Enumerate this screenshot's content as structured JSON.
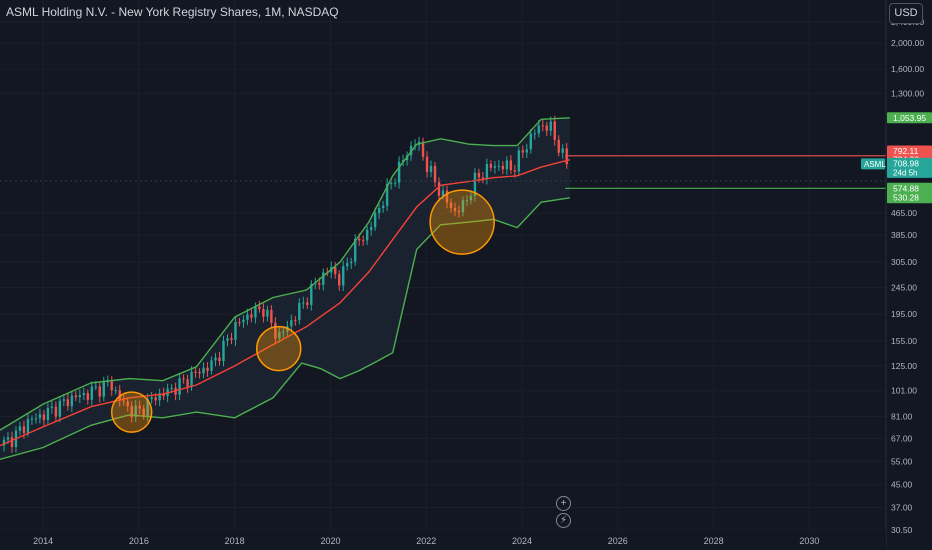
{
  "header": {
    "title": "ASML Holding N.V. - New York Registry Shares, 1M, NASDAQ",
    "currency_button": "USD"
  },
  "controls": {
    "add_icon": "plus-circle-icon",
    "tool_icon": "lightning-icon"
  },
  "colors": {
    "background": "#131722",
    "up": "#26a69a",
    "down": "#ef5350",
    "band": "#4caf50",
    "basis": "#f44336",
    "circle": "#ff9800",
    "grid": "#1e222d"
  },
  "chart_data": {
    "type": "candlestick",
    "title": "ASML Holding N.V. - New York Registry Shares, 1M, NASDAQ",
    "yscale": "log",
    "ylim": [
      30.5,
      2900
    ],
    "xlim": [
      2013.1,
      2031.6
    ],
    "y_ticks": [
      "2,400.00",
      "2,000.00",
      "1,600.00",
      "1,300.00",
      "465.00",
      "385.00",
      "305.00",
      "245.00",
      "195.00",
      "155.00",
      "125.00",
      "101.00",
      "81.00",
      "67.00",
      "55.00",
      "45.00",
      "37.00",
      "30.50"
    ],
    "y_tick_values": [
      2400,
      2000,
      1600,
      1300,
      465,
      385,
      305,
      245,
      195,
      155,
      125,
      101,
      81,
      67,
      55,
      45,
      37,
      30.5
    ],
    "x_ticks": [
      "2014",
      "2016",
      "2018",
      "2020",
      "2022",
      "2024",
      "2026",
      "2028",
      "2030"
    ],
    "x_tick_values": [
      2014,
      2016,
      2018,
      2020,
      2022,
      2024,
      2026,
      2028,
      2030
    ],
    "price_labels": [
      {
        "text": "1,053.95",
        "value": 1053.95,
        "kind": "upper-band"
      },
      {
        "text": "792.11",
        "value": 792.11,
        "kind": "high"
      },
      {
        "text": "734.98",
        "value": 734.98,
        "kind": "basis"
      },
      {
        "text": "708.98",
        "value": 708.98,
        "kind": "last",
        "symbol": "ASML",
        "countdown": "24d 5h"
      },
      {
        "text": "574.88",
        "value": 574.88,
        "kind": "level"
      },
      {
        "text": "530.28",
        "value": 530.28,
        "kind": "lower-band"
      }
    ],
    "horizontal_lines": [
      {
        "value": 760,
        "color": "#ef5350"
      },
      {
        "value": 574.88,
        "color": "#4caf50"
      }
    ],
    "highlight_circles": [
      {
        "x": 2015.85,
        "y": 84
      },
      {
        "x": 2018.92,
        "y": 145
      },
      {
        "x": 2022.75,
        "y": 430
      }
    ],
    "price_path": [
      [
        2013.1,
        63
      ],
      [
        2013.4,
        68
      ],
      [
        2013.7,
        78
      ],
      [
        2014.0,
        82
      ],
      [
        2014.3,
        88
      ],
      [
        2014.6,
        95
      ],
      [
        2014.9,
        98
      ],
      [
        2015.2,
        104
      ],
      [
        2015.4,
        108
      ],
      [
        2015.6,
        94
      ],
      [
        2015.8,
        86
      ],
      [
        2016.0,
        84
      ],
      [
        2016.3,
        95
      ],
      [
        2016.6,
        100
      ],
      [
        2016.9,
        108
      ],
      [
        2017.2,
        118
      ],
      [
        2017.5,
        125
      ],
      [
        2017.8,
        150
      ],
      [
        2018.0,
        175
      ],
      [
        2018.3,
        195
      ],
      [
        2018.6,
        205
      ],
      [
        2018.9,
        160
      ],
      [
        2019.1,
        175
      ],
      [
        2019.4,
        210
      ],
      [
        2019.7,
        255
      ],
      [
        2020.0,
        290
      ],
      [
        2020.2,
        260
      ],
      [
        2020.5,
        350
      ],
      [
        2020.8,
        400
      ],
      [
        2021.0,
        480
      ],
      [
        2021.3,
        620
      ],
      [
        2021.6,
        780
      ],
      [
        2021.8,
        870
      ],
      [
        2022.0,
        710
      ],
      [
        2022.2,
        600
      ],
      [
        2022.4,
        520
      ],
      [
        2022.6,
        470
      ],
      [
        2022.8,
        500
      ],
      [
        2023.0,
        610
      ],
      [
        2023.3,
        690
      ],
      [
        2023.6,
        700
      ],
      [
        2023.8,
        680
      ],
      [
        2024.0,
        780
      ],
      [
        2024.2,
        900
      ],
      [
        2024.4,
        1000
      ],
      [
        2024.6,
        960
      ],
      [
        2024.8,
        800
      ],
      [
        2024.9,
        720
      ],
      [
        2025.0,
        708
      ]
    ],
    "series": [
      {
        "name": "upper",
        "color": "#4caf50",
        "points": [
          [
            2013.1,
            72
          ],
          [
            2014.0,
            90
          ],
          [
            2015.0,
            108
          ],
          [
            2015.8,
            112
          ],
          [
            2016.5,
            110
          ],
          [
            2017.2,
            124
          ],
          [
            2018.0,
            190
          ],
          [
            2018.8,
            225
          ],
          [
            2019.5,
            240
          ],
          [
            2020.2,
            305
          ],
          [
            2020.8,
            430
          ],
          [
            2021.3,
            640
          ],
          [
            2021.8,
            840
          ],
          [
            2022.3,
            880
          ],
          [
            2022.9,
            840
          ],
          [
            2023.4,
            830
          ],
          [
            2023.9,
            830
          ],
          [
            2024.4,
            1040
          ],
          [
            2025.0,
            1054
          ]
        ]
      },
      {
        "name": "basis",
        "color": "#f44336",
        "points": [
          [
            2013.1,
            63
          ],
          [
            2014.0,
            74
          ],
          [
            2015.0,
            88
          ],
          [
            2015.8,
            95
          ],
          [
            2016.5,
            98
          ],
          [
            2017.2,
            106
          ],
          [
            2018.0,
            125
          ],
          [
            2018.8,
            150
          ],
          [
            2019.5,
            175
          ],
          [
            2020.2,
            215
          ],
          [
            2020.8,
            280
          ],
          [
            2021.3,
            370
          ],
          [
            2021.8,
            490
          ],
          [
            2022.3,
            590
          ],
          [
            2022.9,
            610
          ],
          [
            2023.4,
            630
          ],
          [
            2023.9,
            640
          ],
          [
            2024.4,
            690
          ],
          [
            2025.0,
            735
          ]
        ]
      },
      {
        "name": "lower",
        "color": "#4caf50",
        "points": [
          [
            2013.1,
            56
          ],
          [
            2014.0,
            62
          ],
          [
            2015.0,
            75
          ],
          [
            2015.8,
            82
          ],
          [
            2016.5,
            80
          ],
          [
            2017.2,
            84
          ],
          [
            2018.0,
            80
          ],
          [
            2018.8,
            95
          ],
          [
            2019.4,
            128
          ],
          [
            2019.8,
            122
          ],
          [
            2020.2,
            112
          ],
          [
            2020.6,
            120
          ],
          [
            2020.9,
            128
          ],
          [
            2021.3,
            140
          ],
          [
            2021.8,
            340
          ],
          [
            2022.3,
            420
          ],
          [
            2022.9,
            430
          ],
          [
            2023.4,
            440
          ],
          [
            2023.9,
            410
          ],
          [
            2024.4,
            510
          ],
          [
            2025.0,
            530
          ]
        ]
      }
    ]
  }
}
